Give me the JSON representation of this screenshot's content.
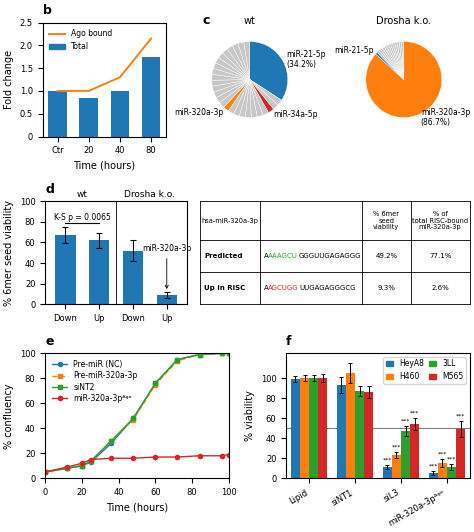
{
  "chart_data": [
    {
      "type": "bar",
      "title": "b",
      "categories": [
        "Ctr",
        "20",
        "40",
        "80"
      ],
      "series": [
        {
          "name": "Ago bound",
          "type": "line",
          "color": "#ff7f0e",
          "values": [
            1.0,
            1.0,
            1.3,
            2.15
          ]
        },
        {
          "name": "Total",
          "type": "bar",
          "color": "#1f77b4",
          "values": [
            1.0,
            0.85,
            1.0,
            1.75
          ]
        }
      ],
      "xlabel": "Time (hours)",
      "ylabel": "Fold change",
      "ylim": [
        0,
        2.5
      ],
      "yticks": [
        0,
        0.5,
        {
          "value": 1,
          "label": "1.0"
        },
        1.5,
        {
          "value": 2,
          "label": "2.0"
        },
        2.5
      ],
      "legend": "upper left"
    },
    {
      "type": "pie",
      "title": "c",
      "series": [
        {
          "name": "wt",
          "categories": [
            "miR-21-5p\n(34.2%)",
            null,
            null,
            "miR-34a-5p",
            null,
            null,
            null,
            null,
            null,
            null,
            null,
            "miR-320a-3p",
            null,
            null,
            null,
            null,
            null,
            null,
            null,
            null,
            null,
            null,
            null,
            null,
            null,
            null,
            null
          ],
          "values": [
            34.2,
            2.530769230769231,
            2.530769230769231,
            2.530769230769231,
            2.530769230769231,
            2.530769230769231,
            2.530769230769231,
            2.530769230769231,
            2.530769230769231,
            2.530769230769231,
            2.530769230769231,
            2.530769230769231,
            2.530769230769231,
            2.530769230769231,
            2.530769230769231,
            2.530769230769231,
            2.530769230769231,
            2.530769230769231,
            2.530769230769231,
            2.530769230769231,
            2.530769230769231,
            2.530769230769231,
            2.530769230769231,
            2.530769230769231,
            2.530769230769231,
            2.530769230769231,
            2.530769230769231
          ],
          "colors": [
            "#1f77b4",
            "#c7c7c7",
            "#c7c7c7",
            "#d62728",
            "#c7c7c7",
            "#c7c7c7",
            "#c7c7c7",
            "#c7c7c7",
            "#c7c7c7",
            "#c7c7c7",
            "#c7c7c7",
            "#ff7f0e",
            "#c7c7c7",
            "#c7c7c7",
            "#c7c7c7",
            "#c7c7c7",
            "#c7c7c7",
            "#c7c7c7",
            "#c7c7c7",
            "#c7c7c7",
            "#c7c7c7",
            "#c7c7c7",
            "#c7c7c7",
            "#c7c7c7",
            "#c7c7c7",
            "#c7c7c7",
            "#c7c7c7"
          ]
        },
        {
          "name": "Drosha k.o.",
          "categories": [
            "miR-320a-3p\n(86.7%)",
            "miR-21-5p",
            null,
            null,
            null,
            null,
            null,
            null,
            null,
            null,
            null,
            null,
            null,
            null,
            null
          ],
          "values": [
            86.7,
            0.95,
            0.95,
            0.95,
            0.95,
            0.95,
            0.95,
            0.95,
            0.95,
            0.95,
            0.95,
            0.95,
            0.95,
            0.95,
            0.95
          ],
          "colors": [
            "#ff7f0e",
            "#1f77b4",
            "#c7c7c7",
            "#c7c7c7",
            "#c7c7c7",
            "#c7c7c7",
            "#c7c7c7",
            "#c7c7c7",
            "#c7c7c7",
            "#c7c7c7",
            "#c7c7c7",
            "#c7c7c7",
            "#c7c7c7",
            "#c7c7c7",
            "#c7c7c7"
          ]
        }
      ]
    },
    {
      "type": "bar",
      "title": "d",
      "categories": [
        "Down",
        "Up",
        "Down",
        "Up"
      ],
      "values": [
        67,
        62,
        52,
        9
      ],
      "errors": [
        8,
        7,
        10,
        3
      ],
      "color": "#1f77b4",
      "ylabel": "% 6mer seed viability",
      "ylim": [
        0,
        100
      ],
      "yticks": [
        0,
        20,
        40,
        60,
        80,
        100
      ],
      "annotations": [
        "wt",
        "Drosha k.o.",
        "K-S p = 0.0065",
        "miR-320a-3p"
      ]
    },
    {
      "type": "table",
      "columns": [
        "hsa-miR-320a-3p",
        null,
        "% 6mer\nseed\nviability",
        "% of\ntotal RISC-bound\nmiR-320a-3p"
      ],
      "rows": [
        [
          "Predicted",
          [
            {
              "text": "A",
              "color": "#000000"
            },
            {
              "text": "AAAGCU",
              "color": "#2ca02c"
            },
            {
              "text": "GGGUUGAGAGGG",
              "color": "#000000"
            }
          ],
          "49.2%",
          "77.1%"
        ],
        [
          "Up in RISC",
          [
            {
              "text": "A",
              "color": "#000000"
            },
            {
              "text": "AGCUGG",
              "color": "#d62728"
            },
            {
              "text": "UUGAGAGGGCG",
              "color": "#000000"
            }
          ],
          "9.3%",
          "2.6%"
        ]
      ]
    },
    {
      "type": "line",
      "title": "e",
      "x": [
        0,
        12,
        20,
        25,
        36,
        48,
        60,
        72,
        84,
        96,
        100
      ],
      "series": [
        {
          "name": "Pre-miR (NC)",
          "color": "#1f77b4",
          "line_style": "solid",
          "marker": "circle",
          "values": [
            5,
            8,
            10,
            13,
            28,
            48,
            76,
            95,
            99,
            100,
            100
          ]
        },
        {
          "name": "Pre-miR-320a-3p",
          "color": "#ff7f0e",
          "line_style": "dashed",
          "marker": "square",
          "values": [
            5,
            8,
            10,
            14,
            30,
            47,
            75,
            94,
            99,
            100,
            100
          ]
        },
        {
          "name": "siNT2",
          "color": "#2ca02c",
          "line_style": "solid",
          "marker": "square",
          "values": [
            5,
            8,
            10,
            14,
            30,
            48,
            76,
            95,
            99,
            100,
            100
          ]
        },
        {
          "name": "miR-320a-3pᴬᵍᵒ",
          "color": "#d62728",
          "line_style": "solid",
          "marker": "circle",
          "values": [
            5,
            9,
            12,
            15,
            16,
            16,
            17,
            17,
            18,
            18,
            19
          ]
        }
      ],
      "xlabel": "Time (hours)",
      "ylabel": "% confluency",
      "xlim": [
        0,
        100
      ],
      "xticks": [
        0,
        20,
        40,
        60,
        80,
        100
      ],
      "ylim": [
        0,
        100
      ],
      "yticks": [
        0,
        20,
        40,
        60,
        80,
        100
      ],
      "legend": "upper left"
    },
    {
      "type": "bar",
      "title": "f",
      "categories": [
        "Lipid",
        "siNT1",
        "siL3",
        "miR-320a-3pᴬᵍᵒ"
      ],
      "series": [
        {
          "name": "HeyA8",
          "color": "#1f77b4",
          "values": [
            99,
            93,
            11,
            5
          ],
          "errors": [
            3,
            8,
            2,
            2
          ],
          "significant": [
            false,
            false,
            true,
            true
          ]
        },
        {
          "name": "H460",
          "color": "#ff7f0e",
          "values": [
            100,
            105,
            23,
            15
          ],
          "errors": [
            3,
            10,
            3,
            4
          ],
          "significant": [
            false,
            false,
            true,
            true
          ]
        },
        {
          "name": "3LL",
          "color": "#2ca02c",
          "values": [
            100,
            87,
            47,
            11
          ],
          "errors": [
            3,
            5,
            5,
            3
          ],
          "significant": [
            false,
            false,
            true,
            true
          ]
        },
        {
          "name": "M565",
          "color": "#d62728",
          "values": [
            100,
            86,
            54,
            49
          ],
          "errors": [
            4,
            6,
            6,
            8
          ],
          "significant": [
            false,
            false,
            true,
            true
          ]
        }
      ],
      "significance_mark": "***",
      "reference_line": 50,
      "ylabel": "% viability",
      "ylim": [
        0,
        125
      ],
      "yticks": [
        0,
        20,
        40,
        60,
        80,
        100
      ],
      "legend": "upper right"
    }
  ]
}
